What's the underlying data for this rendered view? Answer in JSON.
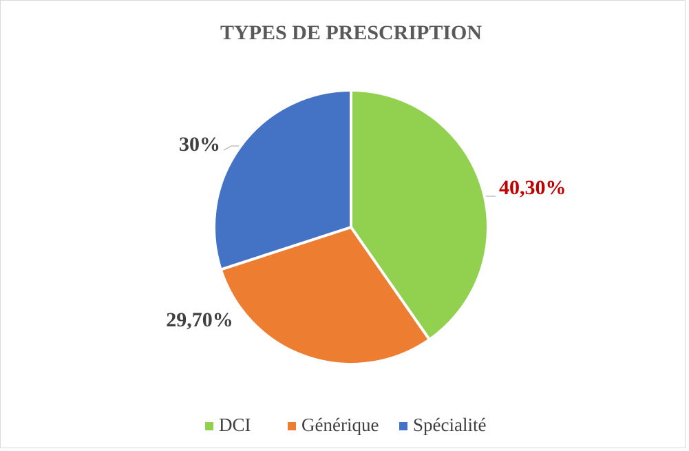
{
  "chart_data": {
    "type": "pie",
    "title": "TYPES DE PRESCRIPTION",
    "categories": [
      "DCI",
      "Générique",
      "Spécialité"
    ],
    "values": [
      40.3,
      29.7,
      30
    ],
    "value_labels": [
      "40,30%",
      "29,70%",
      "30%"
    ],
    "colors": [
      "#92d050",
      "#ed7d31",
      "#4472c4"
    ],
    "value_label_colors": [
      "#c00000",
      "#404040",
      "#404040"
    ],
    "legend": "bottom"
  }
}
